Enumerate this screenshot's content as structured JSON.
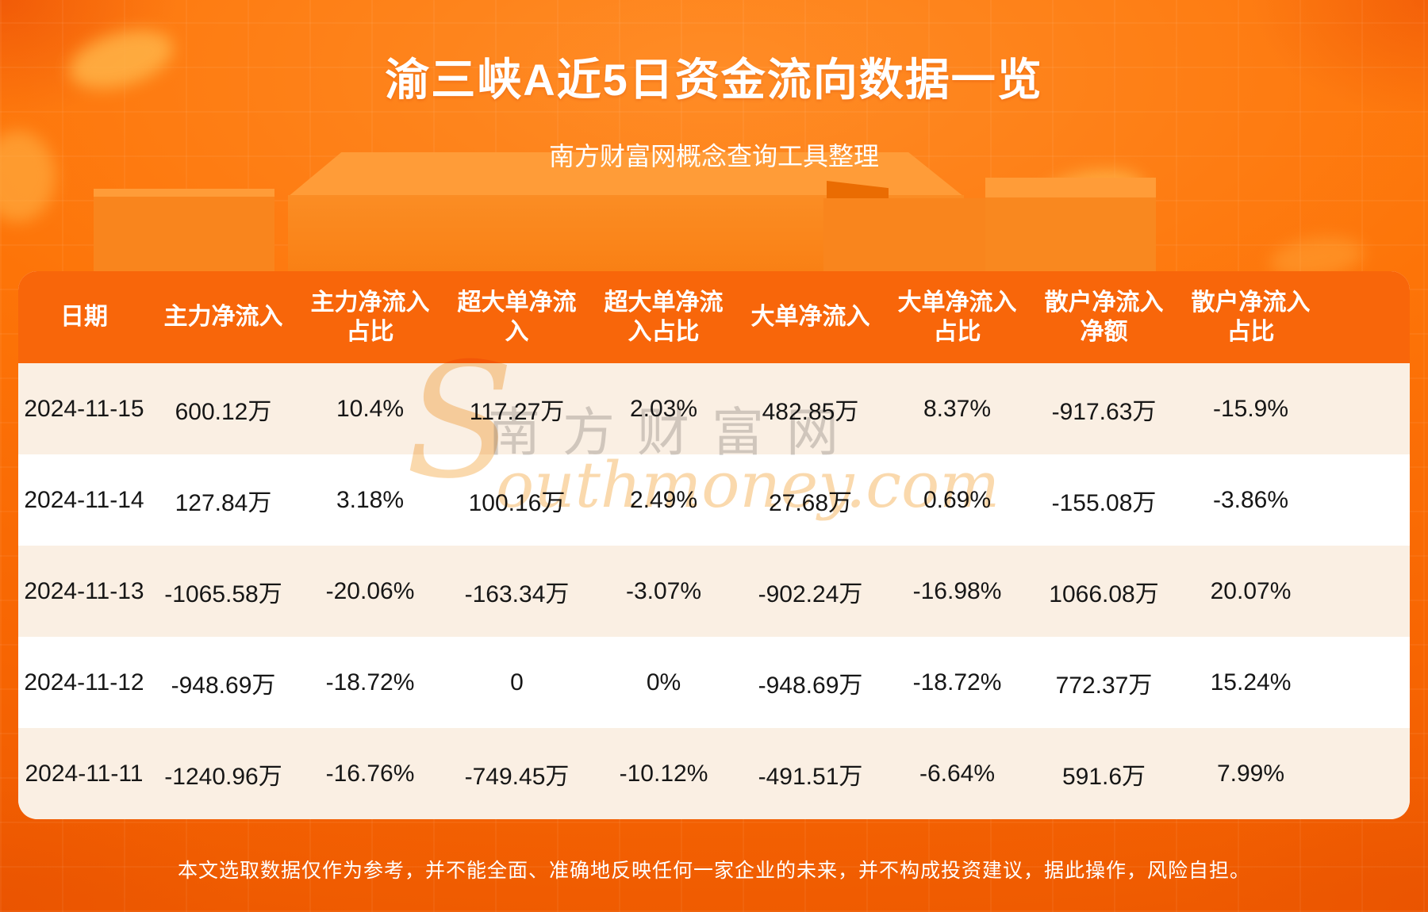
{
  "page": {
    "title": "渝三峡A近5日资金流向数据一览",
    "subtitle": "南方财富网概念查询工具整理",
    "disclaimer": "本文选取数据仅作为参考，并不能全面、准确地反映任何一家企业的未来，并不构成投资建议，据此操作，风险自担。"
  },
  "watermark": {
    "initial": "S",
    "cn": "南方财富网",
    "en": "outhmoney.com"
  },
  "colors": {
    "background_orange": "#fd7408",
    "header_bg": "#f8660a",
    "row_cream": "#faefe3",
    "row_white": "#ffffff",
    "text_dark": "#161616",
    "text_white": "#ffffff"
  },
  "chart_data": {
    "type": "table",
    "title": "渝三峡A近5日资金流向数据一览",
    "columns": [
      "日期",
      "主力净流入",
      "主力净流入占比",
      "超大单净流入",
      "超大单净流入占比",
      "大单净流入",
      "大单净流入占比",
      "散户净流入净额",
      "散户净流入占比"
    ],
    "rows": [
      [
        "2024-11-15",
        "600.12万",
        "10.4%",
        "117.27万",
        "2.03%",
        "482.85万",
        "8.37%",
        "-917.63万",
        "-15.9%"
      ],
      [
        "2024-11-14",
        "127.84万",
        "3.18%",
        "100.16万",
        "2.49%",
        "27.68万",
        "0.69%",
        "-155.08万",
        "-3.86%"
      ],
      [
        "2024-11-13",
        "-1065.58万",
        "-20.06%",
        "-163.34万",
        "-3.07%",
        "-902.24万",
        "-16.98%",
        "1066.08万",
        "20.07%"
      ],
      [
        "2024-11-12",
        "-948.69万",
        "-18.72%",
        "0",
        "0%",
        "-948.69万",
        "-18.72%",
        "772.37万",
        "15.24%"
      ],
      [
        "2024-11-11",
        "-1240.96万",
        "-16.76%",
        "-749.45万",
        "-10.12%",
        "-491.51万",
        "-6.64%",
        "591.6万",
        "7.99%"
      ]
    ]
  }
}
